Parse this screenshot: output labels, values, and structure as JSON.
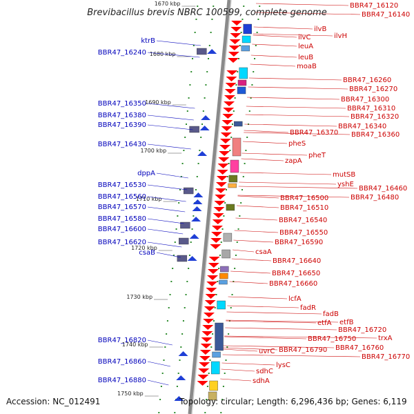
{
  "title": "Brevibacillus brevis NBRC 100599, complete genome",
  "footer": {
    "accession": "Accession: NC_012491",
    "stats": "Topology: circular; Length: 6,296,436 bp; Genes: 6,119"
  },
  "colors": {
    "left_label": "#0000bb",
    "right_label": "#cc0000",
    "backbone": "#8a8a8a",
    "ticks": "#2a8a2a"
  },
  "kbp_marks": [
    "1670 kbp",
    "1680 kbp",
    "1690 kbp",
    "1700 kbp",
    "1710 kbp",
    "1720 kbp",
    "1730 kbp",
    "1740 kbp",
    "1750 kbp"
  ],
  "left_labels": [
    "ktrB",
    "BBR47_16240",
    "BBR47_16350",
    "BBR47_16380",
    "BBR47_16390",
    "BBR47_16430",
    "dppA",
    "BBR47_16530",
    "BBR47_16560",
    "BBR47_16570",
    "BBR47_16580",
    "BBR47_16600",
    "BBR47_16620",
    "csaB",
    "BBR47_16820",
    "BBR47_16860",
    "BBR47_16880"
  ],
  "right_labels": [
    "BBR47_16120",
    "BBR47_16140",
    "ilvB",
    "ilvH",
    "ilvC",
    "leuA",
    "leuB",
    "moaB",
    "BBR47_16260",
    "BBR47_16270",
    "BBR47_16300",
    "BBR47_16310",
    "BBR47_16320",
    "BBR47_16340",
    "BBR47_16370",
    "BBR47_16360",
    "pheS",
    "pheT",
    "zapA",
    "mutSB",
    "yshE",
    "BBR47_16460",
    "BBR47_16480",
    "BBR47_16500",
    "BBR47_16510",
    "BBR47_16540",
    "BBR47_16550",
    "BBR47_16590",
    "csaA",
    "BBR47_16640",
    "BBR47_16650",
    "BBR47_16660",
    "lcfA",
    "fadR",
    "fadB",
    "etfB",
    "etfA",
    "BBR47_16720",
    "trxA",
    "BBR47_16750",
    "BBR47_16760",
    "BBR47_16770",
    "uvrC",
    "BBR47_16790",
    "lysC",
    "sdhC",
    "sdhA"
  ]
}
